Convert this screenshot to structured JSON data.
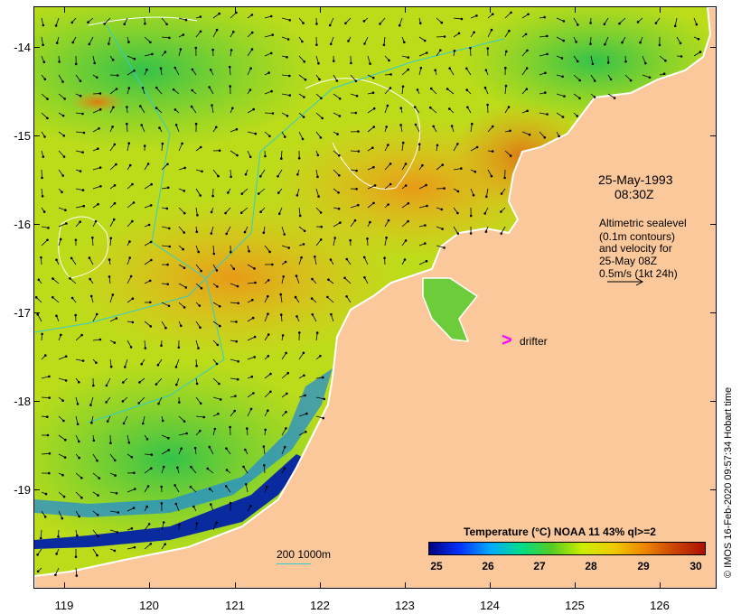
{
  "axes": {
    "lat_labels": [
      "-14",
      "-15",
      "-16",
      "-17",
      "-18",
      "-19"
    ],
    "lon_labels": [
      "119",
      "120",
      "121",
      "122",
      "123",
      "124",
      "125",
      "126"
    ]
  },
  "annotations": {
    "date": "25-May-1993",
    "time": "08:30Z",
    "altimetric_lines": [
      "Altimetric sealevel",
      "(0.1m contours)",
      "and velocity for",
      "25-May 08Z",
      "0.5m/s (1kt 24h)"
    ]
  },
  "drifter": {
    "marker": ">",
    "label": "drifter",
    "color": "#ff00ff"
  },
  "scale": {
    "label": "200  1000m",
    "color": "#33cccc"
  },
  "colorbar": {
    "title": "Temperature (°C) NOAA 11 43% ql>=2",
    "ticks": [
      "25",
      "26",
      "27",
      "28",
      "29",
      "30"
    ],
    "stops": [
      "#000080",
      "#0033ff",
      "#00aaff",
      "#00dd88",
      "#55cc22",
      "#ccee00",
      "#eecc00",
      "#ee8800",
      "#cc4400",
      "#aa1100"
    ]
  },
  "colors": {
    "land": "#fac89a",
    "coast": "#ffffff",
    "arrow": "#000000",
    "contour": "#ffffff"
  },
  "credit": "© IMOS 16-Feb-2020 09:57:34 Hobart time"
}
